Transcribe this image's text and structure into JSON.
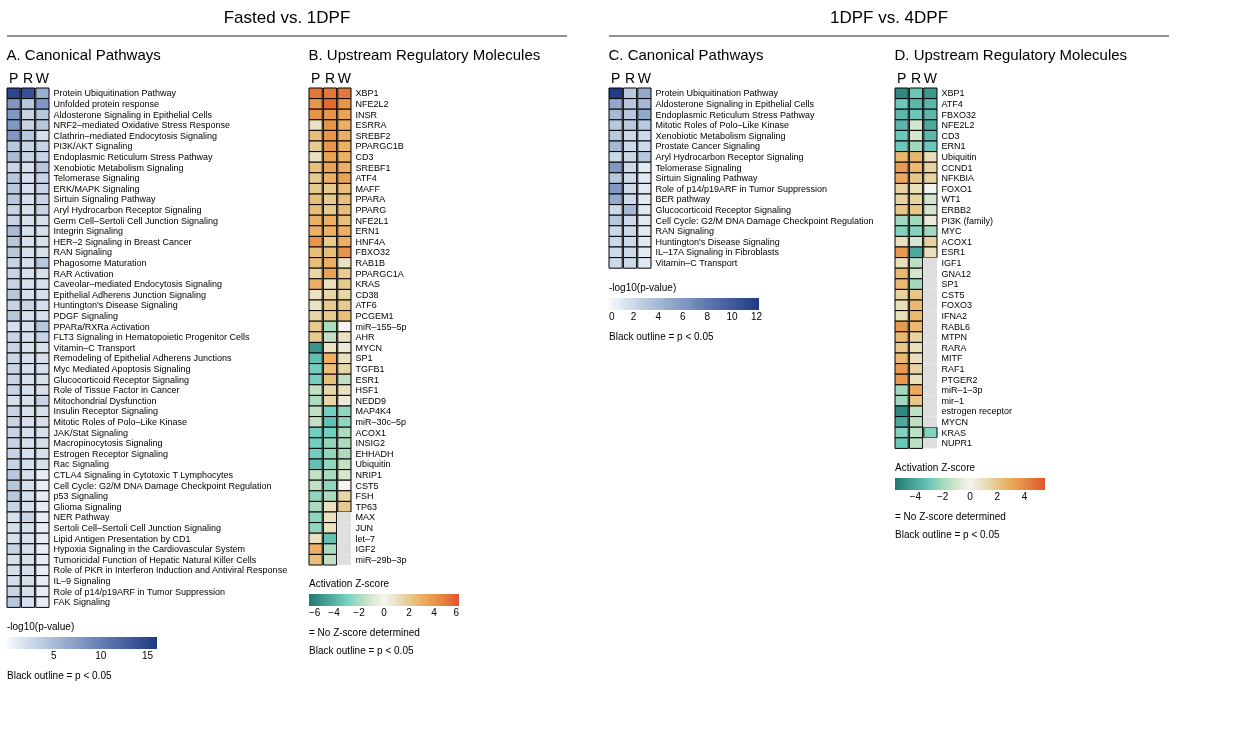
{
  "chart_data": [
    {
      "type": "heatmap",
      "title": "A. Canonical Pathways",
      "annotations": [
        "Fasted vs. 1DPF",
        "Black outline = p < 0.05"
      ],
      "categories": [
        "P",
        "R",
        "W"
      ],
      "y_categories": [
        "Protein Ubiquitination Pathway",
        "Unfolded protein response",
        "Aldosterone Signaling in Epithelial Cells",
        "NRF2–mediated Oxidative Stress Response",
        "Clathrin–mediated Endocytosis Signaling",
        "PI3K/AKT Signaling",
        "Endoplasmic Reticulum Stress Pathway",
        "Xenobiotic Metabolism Signaling",
        "Telomerase Signaling",
        "ERK/MAPK Signaling",
        "Sirtuin Signaling Pathway",
        "Aryl Hydrocarbon Receptor Signaling",
        "Germ Cell–Sertoli Cell Junction Signaling",
        "Integrin Signaling",
        "HER–2 Signaling in Breast Cancer",
        "RAN Signaling",
        "Phagosome Maturation",
        "RAR Activation",
        "Caveolar–mediated Endocytosis Signaling",
        "Epithelial Adherens Junction Signaling",
        "Huntington's Disease Signaling",
        "PDGF Signaling",
        "PPARa/RXRa Activation",
        "FLT3 Signaling in Hematopoietic Progenitor Cells",
        "Vitamin–C Transport",
        "Remodeling of Epithelial Adherens Junctions",
        "Myc Mediated Apoptosis Signaling",
        "Glucocorticoid Receptor Signaling",
        "Role of Tissue Factor in Cancer",
        "Mitochondrial Dysfunction",
        "Insulin Receptor Signaling",
        "Mitotic Roles of Polo–Like Kinase",
        "JAK/Stat Signaling",
        "Macropinocytosis Signaling",
        "Estrogen Receptor Signaling",
        "Rac Signaling",
        "CTLA4 Signaling in Cytotoxic T Lymphocytes",
        "Cell Cycle: G2/M DNA Damage Checkpoint Regulation",
        "p53 Signaling",
        "Glioma Signaling",
        "NER Pathway",
        "Sertoli Cell–Sertoli Cell Junction Signaling",
        "Lipid Antigen Presentation by CD1",
        "Hypoxia Signaling in the Cardiovascular System",
        "Tumoricidal Function of Hepatic Natural Killer Cells",
        "Role of PKR in Interferon Induction and Antiviral Response",
        "IL–9 Signaling",
        "Role of p14/p19ARF in Tumor Suppression",
        "FAK Signaling"
      ],
      "cells": [
        [
          15,
          14,
          6
        ],
        [
          8,
          4,
          8
        ],
        [
          8,
          3,
          4
        ],
        [
          8,
          3,
          4
        ],
        [
          8,
          4,
          2
        ],
        [
          4,
          3,
          3
        ],
        [
          5,
          3,
          3
        ],
        [
          3,
          2,
          4
        ],
        [
          4,
          2,
          3
        ],
        [
          4,
          2,
          3
        ],
        [
          4,
          2,
          3
        ],
        [
          3,
          2,
          3
        ],
        [
          3,
          2,
          2
        ],
        [
          5,
          2,
          2
        ],
        [
          4,
          2,
          2
        ],
        [
          4,
          2,
          2
        ],
        [
          3,
          2,
          4
        ],
        [
          3,
          2,
          2
        ],
        [
          3,
          2,
          2
        ],
        [
          4,
          2,
          2
        ],
        [
          3,
          3,
          2
        ],
        [
          4,
          2,
          2
        ],
        [
          2,
          2,
          4
        ],
        [
          3,
          2,
          3
        ],
        [
          3,
          2,
          2
        ],
        [
          3,
          2,
          2
        ],
        [
          3,
          2,
          2
        ],
        [
          3,
          2,
          2
        ],
        [
          3,
          2,
          2
        ],
        [
          2,
          2,
          3
        ],
        [
          3,
          2,
          2
        ],
        [
          3,
          2,
          2
        ],
        [
          3,
          2,
          2
        ],
        [
          3,
          2,
          2
        ],
        [
          3,
          2,
          2
        ],
        [
          3,
          2,
          2
        ],
        [
          4,
          2,
          1
        ],
        [
          4,
          2,
          1
        ],
        [
          4,
          2,
          1
        ],
        [
          3,
          2,
          1
        ],
        [
          2,
          3,
          1
        ],
        [
          2,
          2,
          1
        ],
        [
          2,
          2,
          1
        ],
        [
          3,
          2,
          1
        ],
        [
          2,
          2,
          1
        ],
        [
          2,
          2,
          1
        ],
        [
          2,
          2,
          1
        ],
        [
          3,
          2,
          1
        ],
        [
          4,
          2,
          1
        ]
      ],
      "clabel": "-log10(p-value)",
      "clim": [
        0,
        16
      ],
      "cticks": [
        5,
        10,
        15
      ]
    },
    {
      "type": "heatmap",
      "title": "B. Upstream Regulatory Molecules",
      "annotations": [
        "= No Z-score determined",
        "Black outline = p < 0.05"
      ],
      "categories": [
        "P",
        "R",
        "W"
      ],
      "y_categories": [
        "XBP1",
        "NFE2L2",
        "INSR",
        "ESRRA",
        "SREBF2",
        "PPARGC1B",
        "CD3",
        "SREBF1",
        "ATF4",
        "MAFF",
        "PPARA",
        "PPARG",
        "NFE2L1",
        "ERN1",
        "HNF4A",
        "FBXO32",
        "RAB1B",
        "PPARGC1A",
        "KRAS",
        "CD38",
        "ATF6",
        "PCGEM1",
        "miR–155–5p",
        "AHR",
        "MYCN",
        "SP1",
        "TGFB1",
        "ESR1",
        "HSF1",
        "NEDD9",
        "MAP4K4",
        "miR–30c–5p",
        "ACOX1",
        "INSIG2",
        "EHHADH",
        "Ubiquitin",
        "NRIP1",
        "CST5",
        "FSH",
        "TP63",
        "MAX",
        "JUN",
        "let–7",
        "IGF2",
        "miR–29b–3p"
      ],
      "cells": [
        [
          5,
          5,
          5
        ],
        [
          4,
          5.5,
          4
        ],
        [
          4,
          4,
          3.5
        ],
        [
          1,
          4,
          3
        ],
        [
          2.5,
          4,
          3
        ],
        [
          2,
          4,
          3
        ],
        [
          1,
          3.5,
          3
        ],
        [
          2.5,
          3.5,
          3
        ],
        [
          2,
          3,
          3.5
        ],
        [
          2,
          2,
          2.5
        ],
        [
          2.5,
          2,
          2.5
        ],
        [
          2.5,
          2,
          2.5
        ],
        [
          3,
          3,
          2.5
        ],
        [
          3,
          3,
          3
        ],
        [
          4,
          2,
          3
        ],
        [
          2.5,
          2.5,
          4
        ],
        [
          2.5,
          3,
          1
        ],
        [
          1.5,
          3.5,
          2
        ],
        [
          3,
          1,
          2
        ],
        [
          1,
          1.5,
          1.5
        ],
        [
          1,
          2,
          2
        ],
        [
          1.5,
          2,
          2.5
        ],
        [
          2,
          -2,
          0
        ],
        [
          2,
          -1.5,
          1
        ],
        [
          -5,
          1,
          0.5
        ],
        [
          -3.5,
          3,
          1
        ],
        [
          -3,
          2.5,
          1.5
        ],
        [
          -3,
          2.5,
          -1.5
        ],
        [
          -1.5,
          1.5,
          1
        ],
        [
          -2,
          1.5,
          0.5
        ],
        [
          -1.5,
          -3,
          -2.5
        ],
        [
          -1.5,
          -3.5,
          -2.5
        ],
        [
          -3,
          -3,
          -2
        ],
        [
          -3,
          -2.5,
          -2
        ],
        [
          -3,
          -2.5,
          -2
        ],
        [
          -3.5,
          -2.5,
          -1.5
        ],
        [
          -1.5,
          -2,
          -1
        ],
        [
          -1.5,
          -2.5,
          0
        ],
        [
          -2.5,
          -2,
          1.5
        ],
        [
          -2,
          1,
          2
        ],
        [
          -2.5,
          1,
          null
        ],
        [
          -2.5,
          1,
          null
        ],
        [
          1,
          -3.5,
          null
        ],
        [
          3,
          -2,
          null
        ],
        [
          2.5,
          -1.5,
          null
        ]
      ],
      "clabel": "Activation Z-score",
      "clim": [
        -6,
        6
      ],
      "cticks": [
        -6,
        -4,
        -2,
        0,
        2,
        4,
        6
      ]
    },
    {
      "type": "heatmap",
      "title": "C. Canonical Pathways",
      "annotations": [
        "1DPF vs. 4DPF",
        "Black outline = p < 0.05"
      ],
      "categories": [
        "P",
        "R",
        "W"
      ],
      "y_categories": [
        "Protein Ubiquitination Pathway",
        "Aldosterone Signaling in Epithelial Cells",
        "Endoplasmic Reticulum Stress Pathway",
        "Mitotic Roles of Polo–Like Kinase",
        "Xenobiotic Metabolism Signaling",
        "Prostate Cancer Signaling",
        "Aryl Hydrocarbon Receptor Signaling",
        "Telomerase Signaling",
        "Sirtuin Signaling Pathway",
        "Role of p14/p19ARF in Tumor Suppression",
        "BER pathway",
        "Glucocorticoid Receptor Signaling",
        "Cell Cycle: G2/M DNA Damage Checkpoint Regulation",
        "RAN Signaling",
        "Huntington's Disease Signaling",
        "IL–17A Signaling in Fibroblasts",
        "Vitamin–C Transport"
      ],
      "cells": [
        [
          12,
          3,
          5
        ],
        [
          5,
          3,
          4
        ],
        [
          4,
          3,
          5
        ],
        [
          3,
          3,
          3
        ],
        [
          3,
          2,
          2
        ],
        [
          4,
          2,
          2
        ],
        [
          2,
          2,
          3
        ],
        [
          6,
          2,
          1
        ],
        [
          3,
          2,
          1
        ],
        [
          6,
          2,
          1
        ],
        [
          5,
          2,
          1
        ],
        [
          2,
          4,
          1
        ],
        [
          3,
          2,
          1
        ],
        [
          2,
          2,
          1
        ],
        [
          2,
          2,
          1
        ],
        [
          2,
          2,
          1
        ],
        [
          2,
          2,
          1
        ]
      ],
      "clabel": "-log10(p-value)",
      "clim": [
        0,
        12.2
      ],
      "cticks": [
        0,
        2,
        4,
        6,
        8,
        10,
        12
      ]
    },
    {
      "type": "heatmap",
      "title": "D. Upstream Regulatory Molecules",
      "annotations": [
        "= No Z-score determined",
        "Black outline = p < 0.05"
      ],
      "categories": [
        "P",
        "R",
        "W"
      ],
      "y_categories": [
        "XBP1",
        "ATF4",
        "FBXO32",
        "NFE2L2",
        "CD3",
        "ERN1",
        "Ubiquitin",
        "CCND1",
        "NFKBIA",
        "FOXO1",
        "WT1",
        "ERBB2",
        "PI3K (family)",
        "MYC",
        "ACOX1",
        "ESR1",
        "IGF1",
        "GNA12",
        "SP1",
        "CST5",
        "FOXO3",
        "IFNA2",
        "RABL6",
        "MTPN",
        "RARA",
        "MITF",
        "RAF1",
        "PTGER2",
        "miR–1–3p",
        "mir–1",
        "estrogen receptor",
        "MYCN",
        "KRAS",
        "NUPR1"
      ],
      "cells": [
        [
          -5,
          -3,
          -4.5
        ],
        [
          -3,
          -3.5,
          -3.5
        ],
        [
          -3.5,
          -3,
          -3.5
        ],
        [
          -3.5,
          -1,
          -4
        ],
        [
          -3,
          -1,
          -3.5
        ],
        [
          -3,
          -2,
          -3
        ],
        [
          2.5,
          2.5,
          1
        ],
        [
          3.5,
          2.5,
          1.5
        ],
        [
          3,
          2,
          1.5
        ],
        [
          1.5,
          1,
          0
        ],
        [
          1.5,
          1.5,
          -1
        ],
        [
          2,
          2,
          -1
        ],
        [
          -2,
          -2,
          0.5
        ],
        [
          -2.5,
          -2.5,
          -2
        ],
        [
          1,
          -1,
          1.5
        ],
        [
          3.5,
          -4,
          1
        ],
        [
          1,
          -1.5,
          null
        ],
        [
          2.5,
          -1,
          null
        ],
        [
          2.5,
          -2,
          null
        ],
        [
          1.5,
          2,
          null
        ],
        [
          1,
          2.5,
          null
        ],
        [
          1,
          2.5,
          null
        ],
        [
          3.5,
          2.5,
          null
        ],
        [
          2.5,
          1.5,
          null
        ],
        [
          2,
          1,
          null
        ],
        [
          2.5,
          1,
          null
        ],
        [
          3.5,
          1.5,
          null
        ],
        [
          3.5,
          1,
          null
        ],
        [
          -2,
          3,
          null
        ],
        [
          -2,
          2,
          null
        ],
        [
          -5,
          -1.5,
          null
        ],
        [
          -4,
          -1.5,
          null
        ],
        [
          -2.5,
          -1.5,
          -2.5
        ],
        [
          -3,
          -1.5,
          null
        ]
      ],
      "clabel": "Activation Z-score",
      "clim": [
        -5.5,
        5.5
      ],
      "cticks": [
        -4,
        -2,
        0,
        2,
        4
      ]
    }
  ]
}
